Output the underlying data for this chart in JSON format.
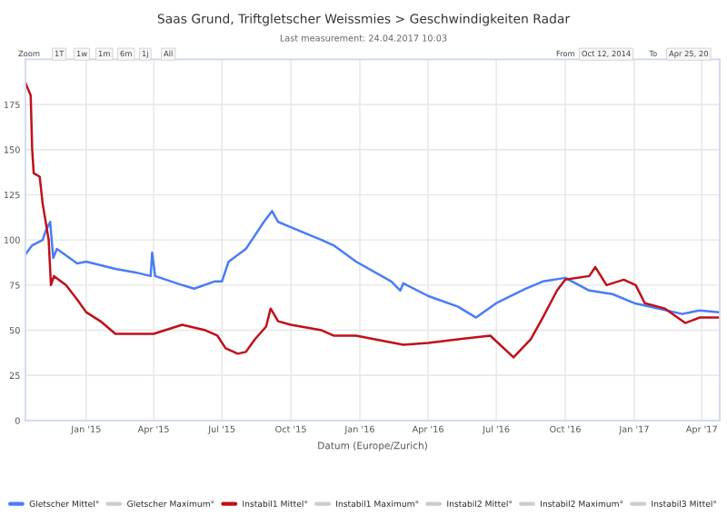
{
  "chart_data": {
    "type": "line",
    "title": "Saas Grund, Triftgletscher Weissmies > Geschwindigkeiten Radar",
    "subtitle": "Last measurement: 24.04.2017 10:03",
    "xlabel": "Datum (Europe/Zurich)",
    "annotations": [
      "Zoom",
      "1T",
      "1w",
      "1m",
      "6m",
      "1j",
      "All",
      "From",
      "Oct 12, 2014",
      "To",
      "Apr 25, 20"
    ],
    "xlim": [
      "2014-10-12",
      "2017-04-25"
    ],
    "xticks": [
      {
        "value": "2015-01-01",
        "label": "Jan '15"
      },
      {
        "value": "2015-04-01",
        "label": "Apr '15"
      },
      {
        "value": "2015-07-01",
        "label": "Jul '15"
      },
      {
        "value": "2015-10-01",
        "label": "Oct '15"
      },
      {
        "value": "2016-01-01",
        "label": "Jan '16"
      },
      {
        "value": "2016-04-01",
        "label": "Apr '16"
      },
      {
        "value": "2016-07-01",
        "label": "Jul '16"
      },
      {
        "value": "2016-10-01",
        "label": "Oct '16"
      },
      {
        "value": "2017-01-01",
        "label": "Jan '17"
      },
      {
        "value": "2017-04-01",
        "label": "Apr '17"
      }
    ],
    "ylim": [
      0,
      200
    ],
    "yticks": [
      0,
      25,
      50,
      75,
      100,
      125,
      150,
      175
    ],
    "grid": true,
    "legend": "bottom",
    "series": [
      {
        "name": "Gletscher Mittel°",
        "color": "#4a7cf7",
        "x": [
          "2014-10-12",
          "2014-10-21",
          "2014-11-04",
          "2014-11-08",
          "2014-11-14",
          "2014-11-18",
          "2014-11-23",
          "2014-12-20",
          "2015-01-01",
          "2015-02-09",
          "2015-03-08",
          "2015-03-28",
          "2015-03-30",
          "2015-04-03",
          "2015-05-09",
          "2015-05-25",
          "2015-06-21",
          "2015-07-01",
          "2015-07-10",
          "2015-08-02",
          "2015-08-10",
          "2015-08-26",
          "2015-09-06",
          "2015-09-14",
          "2015-10-01",
          "2015-11-11",
          "2015-11-27",
          "2015-12-27",
          "2016-02-12",
          "2016-02-24",
          "2016-02-28",
          "2016-04-01",
          "2016-05-11",
          "2016-06-04",
          "2016-07-01",
          "2016-08-09",
          "2016-09-01",
          "2016-10-01",
          "2016-11-02",
          "2016-12-03",
          "2017-01-01",
          "2017-02-03",
          "2017-03-06",
          "2017-03-29",
          "2017-04-24"
        ],
        "values": [
          92,
          97,
          100,
          105,
          110,
          90,
          95,
          87,
          88,
          84,
          82,
          80,
          93,
          80,
          75,
          73,
          77,
          77,
          88,
          95,
          100,
          110,
          116,
          110,
          107,
          100,
          97,
          88,
          77,
          72,
          76,
          69,
          63,
          57,
          65,
          73,
          77,
          79,
          72,
          70,
          65,
          62,
          59,
          61,
          60
        ]
      },
      {
        "name": "Gletscher Maximum°",
        "color": "#cccccc"
      },
      {
        "name": "Instabil1 Mittel°",
        "color": "#c0101a",
        "x": [
          "2014-10-12",
          "2014-10-19",
          "2014-10-21",
          "2014-10-23",
          "2014-10-31",
          "2014-11-04",
          "2014-11-12",
          "2014-11-15",
          "2014-11-19",
          "2014-12-05",
          "2014-12-20",
          "2015-01-01",
          "2015-01-20",
          "2015-02-09",
          "2015-03-08",
          "2015-04-01",
          "2015-05-09",
          "2015-06-09",
          "2015-06-25",
          "2015-07-06",
          "2015-07-22",
          "2015-08-02",
          "2015-08-14",
          "2015-08-29",
          "2015-09-04",
          "2015-09-14",
          "2015-10-01",
          "2015-11-11",
          "2015-11-27",
          "2015-12-27",
          "2016-02-28",
          "2016-04-01",
          "2016-05-11",
          "2016-06-23",
          "2016-07-24",
          "2016-08-16",
          "2016-09-01",
          "2016-09-20",
          "2016-10-01",
          "2016-11-02",
          "2016-11-10",
          "2016-11-25",
          "2016-12-18",
          "2017-01-03",
          "2017-01-15",
          "2017-02-11",
          "2017-03-10",
          "2017-03-29",
          "2017-04-24"
        ],
        "values": [
          187,
          180,
          150,
          137,
          135,
          120,
          100,
          75,
          80,
          75,
          67,
          60,
          55,
          48,
          48,
          48,
          53,
          50,
          47,
          40,
          37,
          38,
          45,
          52,
          62,
          55,
          53,
          50,
          47,
          47,
          42,
          43,
          45,
          47,
          35,
          45,
          57,
          72,
          78,
          80,
          85,
          75,
          78,
          75,
          65,
          62,
          54,
          57,
          57
        ]
      },
      {
        "name": "Instabil1 Maximum°",
        "color": "#cccccc"
      },
      {
        "name": "Instabil2 Mittel°",
        "color": "#cccccc"
      },
      {
        "name": "Instabil2 Maximum°",
        "color": "#cccccc"
      },
      {
        "name": "Instabil3 Mittel°",
        "color": "#cccccc"
      }
    ]
  }
}
